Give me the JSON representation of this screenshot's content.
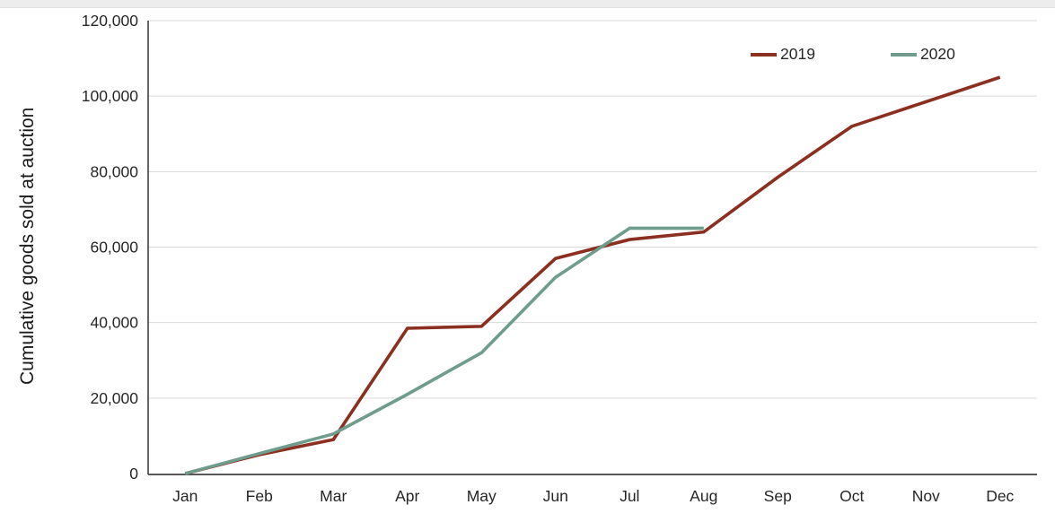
{
  "window": {
    "top_strip_color": "#ededed"
  },
  "chart_data": {
    "type": "line",
    "title": "",
    "xlabel": "",
    "ylabel": "Cumulative goods sold at auction",
    "categories": [
      "Jan",
      "Feb",
      "Mar",
      "Apr",
      "May",
      "Jun",
      "Jul",
      "Aug",
      "Sep",
      "Oct",
      "Nov",
      "Dec"
    ],
    "y_ticks": [
      "0",
      "20,000",
      "40,000",
      "60,000",
      "80,000",
      "100,000",
      "120,000"
    ],
    "ylim": [
      0,
      120000
    ],
    "grid": "horizontal",
    "legend_position": "top-right-inside",
    "colors": {
      "grid": "#d9d9d9",
      "axis": "#404040",
      "tick_text": "#262626"
    },
    "series": [
      {
        "name": "2019",
        "color": "#8B2F21",
        "values": [
          0,
          5000,
          9000,
          38500,
          39000,
          57000,
          62000,
          64000,
          78500,
          92000,
          98500,
          105000
        ]
      },
      {
        "name": "2020",
        "color": "#6F9C8D",
        "values": [
          0,
          5300,
          10500,
          21000,
          32000,
          52000,
          65000,
          65000
        ]
      }
    ]
  }
}
